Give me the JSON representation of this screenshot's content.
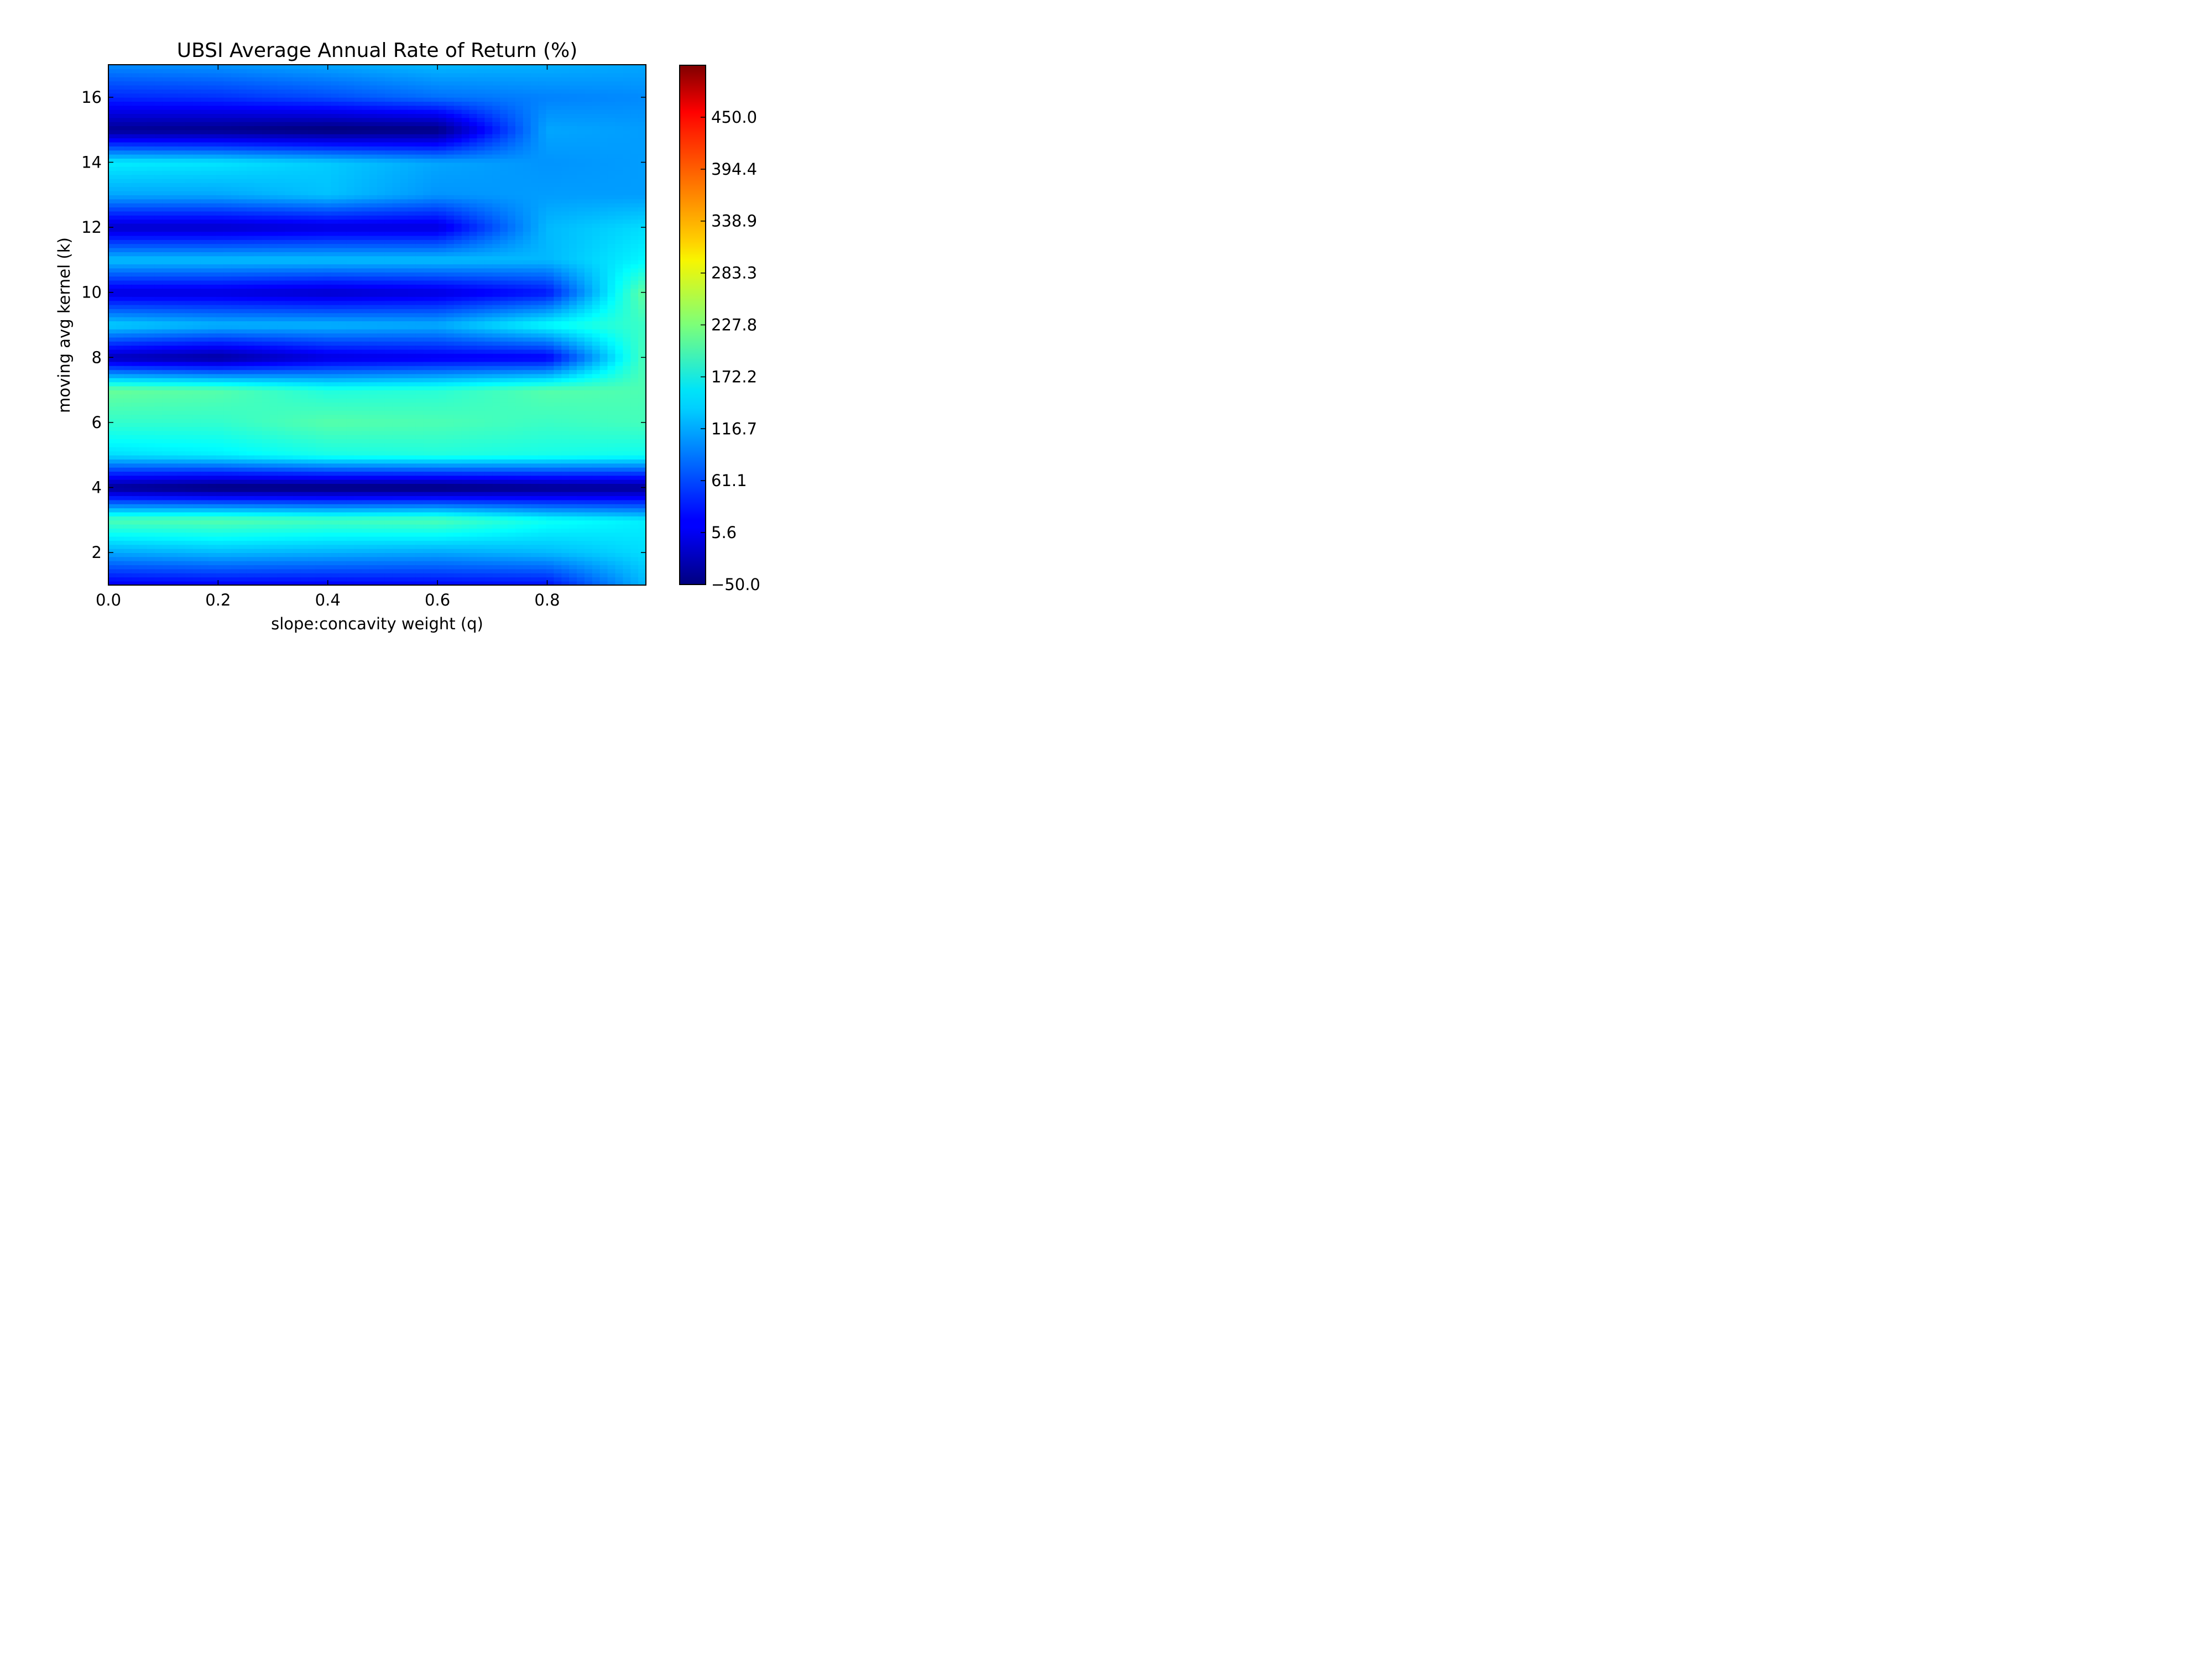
{
  "chart_data": {
    "type": "heatmap",
    "title": "UBSI Average Annual Rate of Return (%)",
    "xlabel": "slope:concavity weight (q)",
    "ylabel": "moving avg kernel (k)",
    "xlim": [
      0.0,
      0.98
    ],
    "ylim": [
      1,
      17
    ],
    "x_ticks": [
      0.0,
      0.2,
      0.4,
      0.6,
      0.8
    ],
    "x_tick_labels": [
      "0.0",
      "0.2",
      "0.4",
      "0.6",
      "0.8"
    ],
    "y_ticks": [
      2,
      4,
      6,
      8,
      10,
      12,
      14,
      16
    ],
    "y_tick_labels": [
      "2",
      "4",
      "6",
      "8",
      "10",
      "12",
      "14",
      "16"
    ],
    "colorbar": {
      "colormap": "jet",
      "range": [
        -50.0,
        505.6
      ],
      "ticks": [
        -50.0,
        5.6,
        61.1,
        116.7,
        172.2,
        227.8,
        283.3,
        338.9,
        394.4,
        450.0
      ],
      "tick_labels": [
        "−50.0",
        "5.6",
        "61.1",
        "116.7",
        "172.2",
        "227.8",
        "283.3",
        "338.9",
        "394.4",
        "450.0"
      ]
    },
    "x": [
      0.0,
      0.2,
      0.4,
      0.6,
      0.8,
      0.98
    ],
    "y": [
      1,
      2,
      3,
      4,
      5,
      6,
      7,
      8,
      9,
      10,
      11,
      12,
      13,
      14,
      15,
      16,
      17
    ],
    "z": [
      [
        10,
        15,
        15,
        20,
        25,
        120
      ],
      [
        110,
        120,
        115,
        110,
        120,
        140
      ],
      [
        200,
        205,
        195,
        200,
        165,
        150
      ],
      [
        -40,
        -55,
        -55,
        -55,
        -45,
        -40
      ],
      [
        140,
        150,
        170,
        175,
        170,
        165
      ],
      [
        185,
        185,
        205,
        200,
        190,
        195
      ],
      [
        215,
        205,
        175,
        180,
        205,
        200
      ],
      [
        -20,
        -35,
        0,
        10,
        15,
        200
      ],
      [
        135,
        120,
        120,
        115,
        160,
        190
      ],
      [
        0,
        0,
        -10,
        0,
        30,
        215
      ],
      [
        125,
        125,
        125,
        125,
        120,
        155
      ],
      [
        -10,
        -10,
        0,
        0,
        120,
        140
      ],
      [
        110,
        110,
        125,
        100,
        105,
        105
      ],
      [
        150,
        145,
        130,
        110,
        100,
        105
      ],
      [
        -40,
        -45,
        -55,
        -50,
        110,
        105
      ],
      [
        40,
        45,
        60,
        80,
        90,
        95
      ],
      [
        95,
        100,
        110,
        120,
        115,
        110
      ]
    ]
  }
}
